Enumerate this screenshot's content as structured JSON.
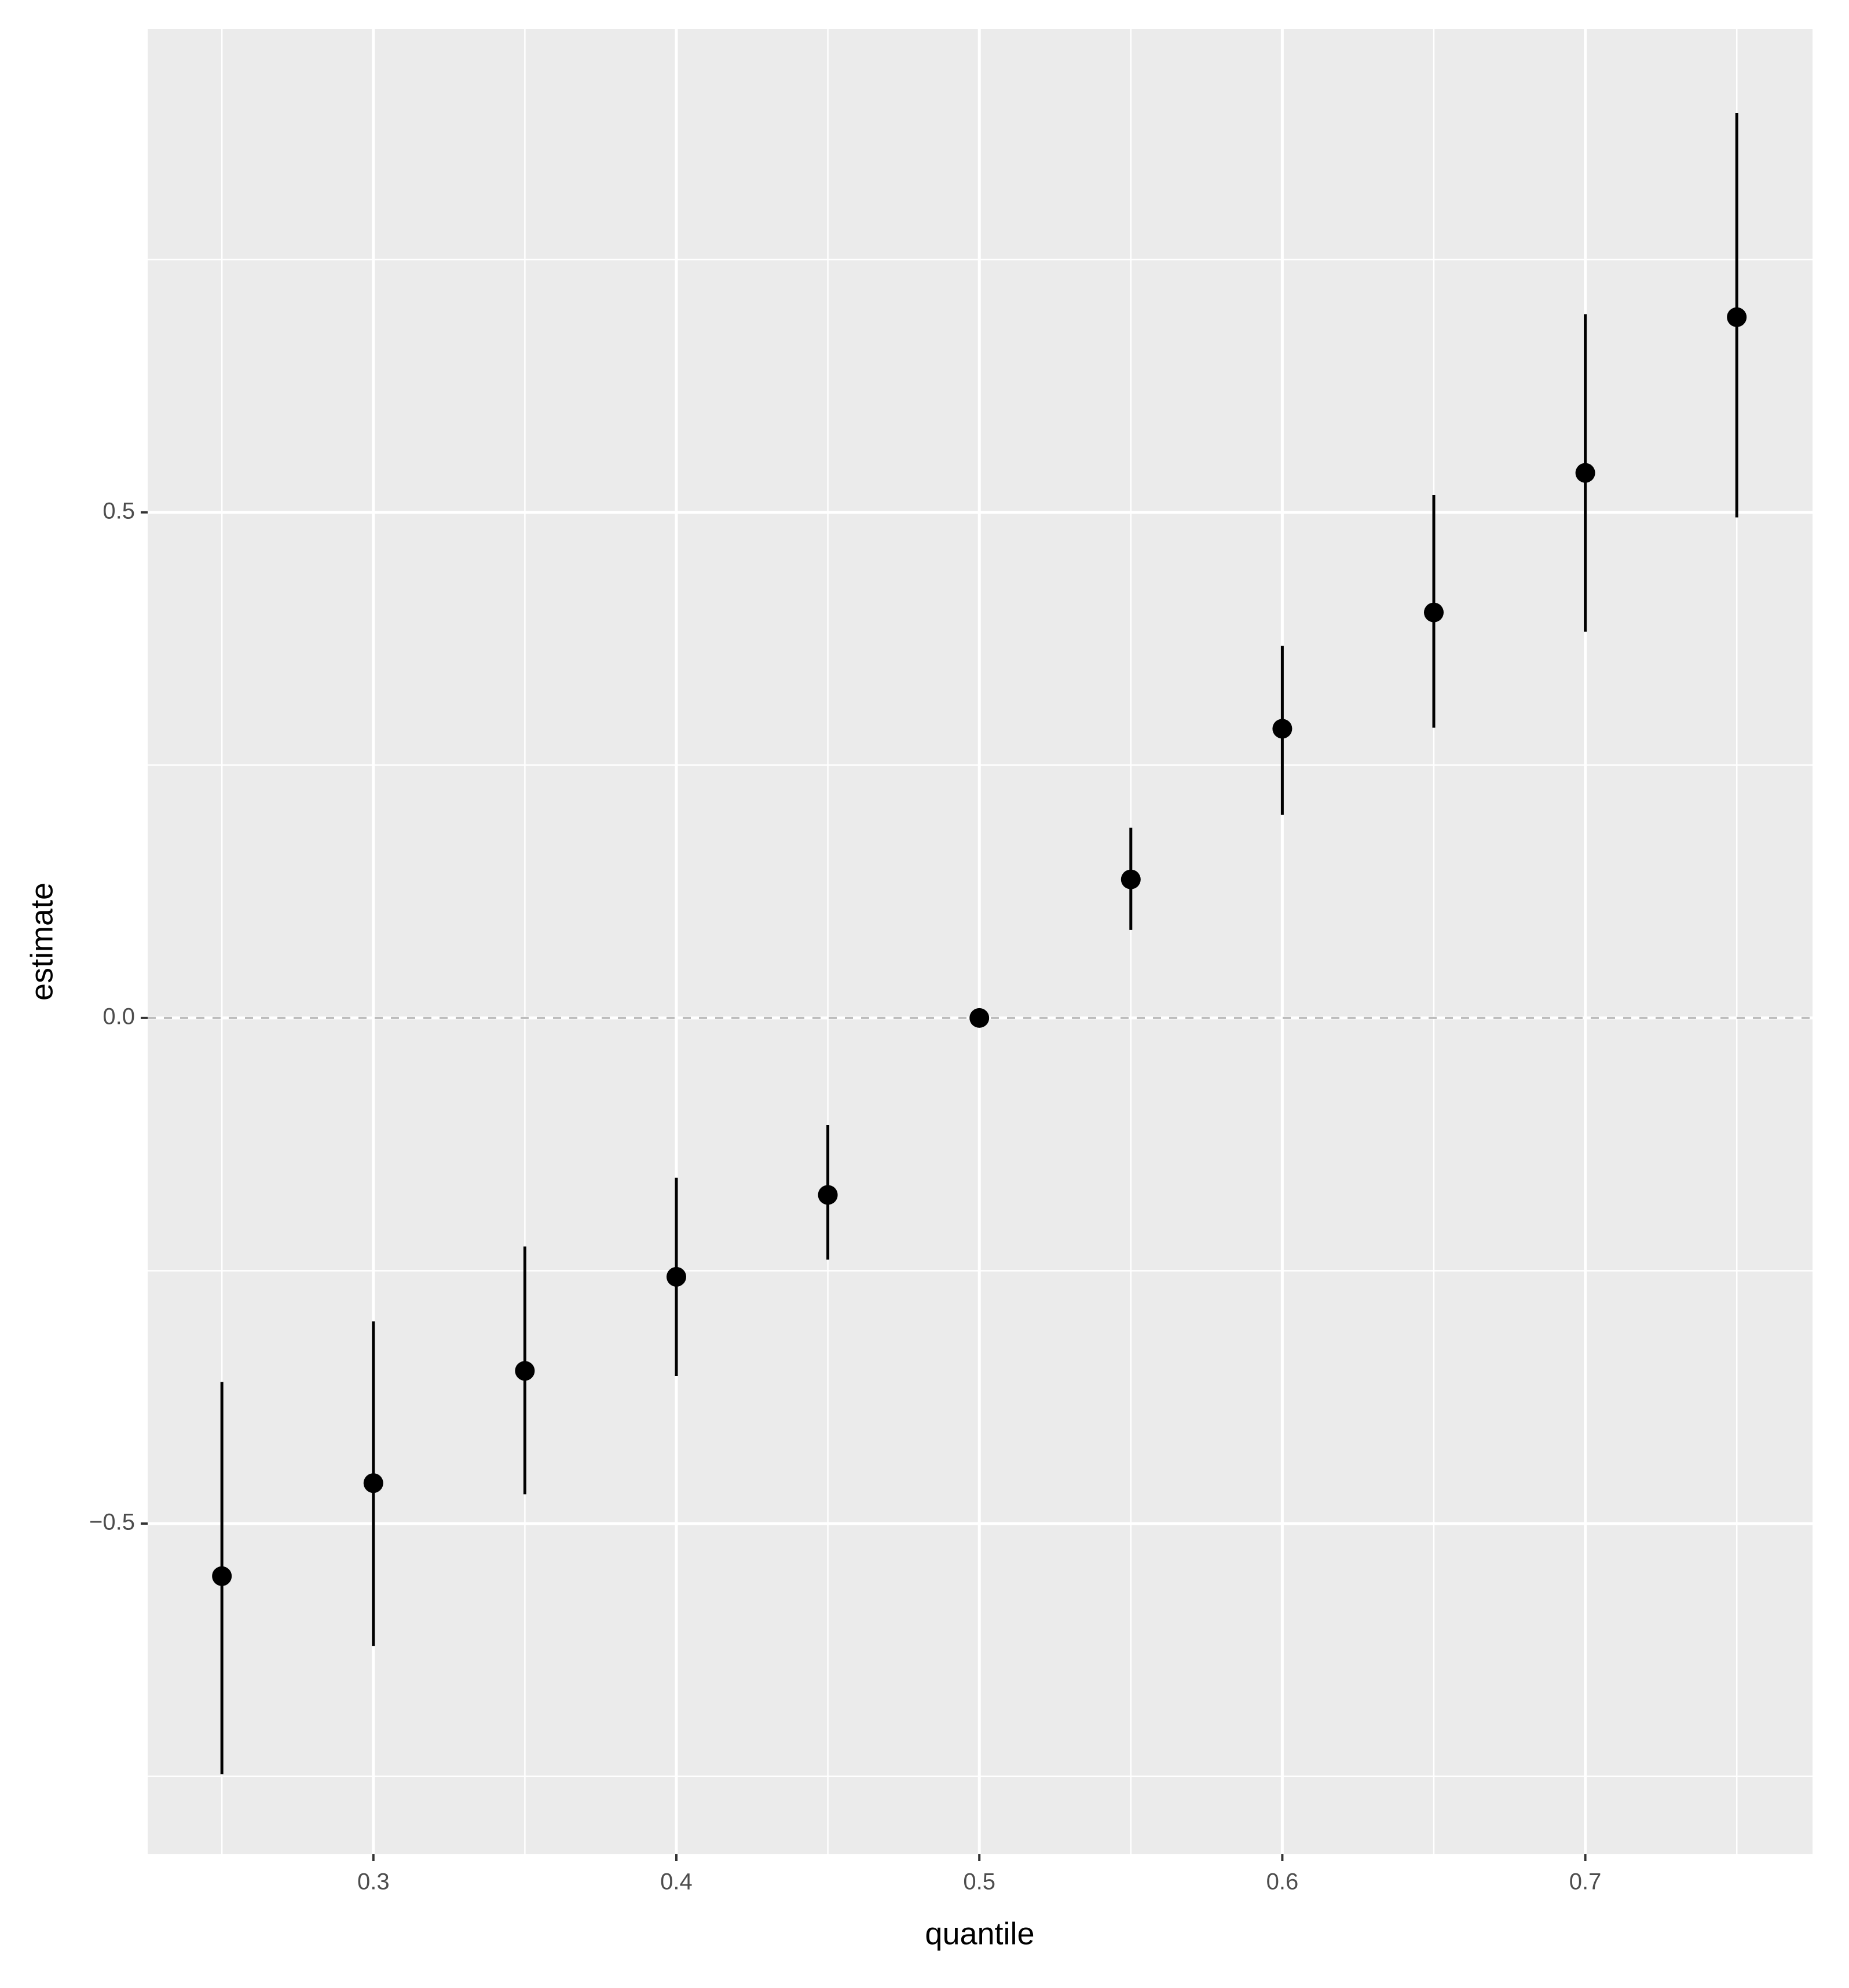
{
  "chart_data": {
    "type": "pointrange",
    "x_label": "quantile",
    "y_label": "estimate",
    "x": [
      0.25,
      0.3,
      0.35,
      0.4,
      0.45,
      0.5,
      0.55,
      0.6,
      0.65,
      0.7,
      0.75
    ],
    "series": [
      {
        "color": "#000000",
        "values": [
          -0.552,
          -0.46,
          -0.349,
          -0.256,
          -0.175,
          0,
          0.137,
          0.286,
          0.401,
          0.539,
          0.693
        ],
        "lower": [
          -0.748,
          -0.621,
          -0.471,
          -0.354,
          -0.239,
          0,
          0.087,
          0.201,
          0.287,
          0.382,
          0.495
        ],
        "upper": [
          -0.36,
          -0.3,
          -0.226,
          -0.158,
          -0.106,
          0,
          0.188,
          0.368,
          0.517,
          0.696,
          0.895
        ]
      }
    ],
    "xlim": [
      0.2255,
      0.775
    ],
    "ylim": [
      -0.827,
      0.978
    ],
    "xticks": [
      0.3,
      0.4,
      0.5,
      0.6,
      0.7
    ],
    "yticks": [
      {
        "value": -0.5,
        "label": "−0.5"
      },
      {
        "value": 0,
        "label": "0.0"
      },
      0.5
    ],
    "x_minor_grid": [
      0.25,
      0.35,
      0.45,
      0.55,
      0.65,
      0.75
    ],
    "y_minor_grid": [
      -0.75,
      -0.25,
      0.25,
      0.75
    ],
    "hline": 0,
    "grid": true
  }
}
